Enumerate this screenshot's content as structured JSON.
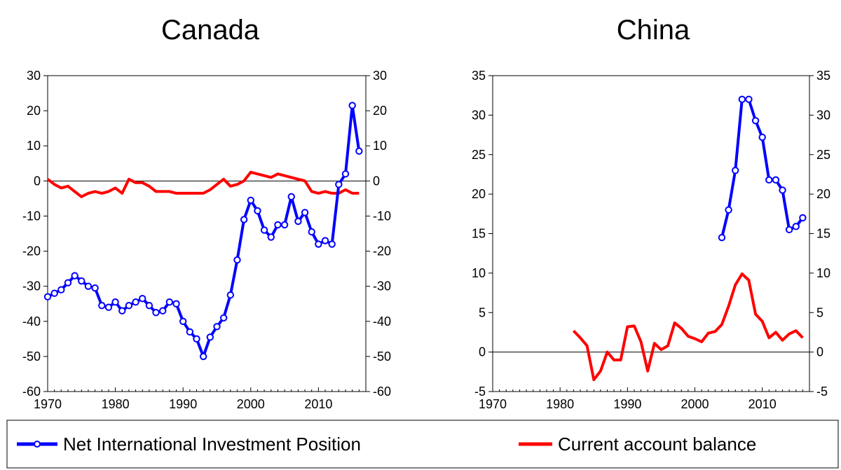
{
  "chart_data": [
    {
      "type": "line",
      "title": "Canada",
      "xlim": [
        1970,
        2017
      ],
      "ylim": [
        -60,
        30
      ],
      "xticks": [
        1970,
        1980,
        1990,
        2000,
        2010
      ],
      "yticks": [
        -60,
        -50,
        -40,
        -30,
        -20,
        -10,
        0,
        10,
        20,
        30
      ],
      "dual_y_axis": true,
      "zero_line": true,
      "series": [
        {
          "name": "Net International Investment Position",
          "color": "#0000ff",
          "marker": "circle",
          "x": [
            1970,
            1971,
            1972,
            1973,
            1974,
            1975,
            1976,
            1977,
            1978,
            1979,
            1980,
            1981,
            1982,
            1983,
            1984,
            1985,
            1986,
            1987,
            1988,
            1989,
            1990,
            1991,
            1992,
            1993,
            1994,
            1995,
            1996,
            1997,
            1998,
            1999,
            2000,
            2001,
            2002,
            2003,
            2004,
            2005,
            2006,
            2007,
            2008,
            2009,
            2010,
            2011,
            2012,
            2013,
            2014,
            2015,
            2016
          ],
          "y": [
            -33,
            -32,
            -31,
            -29,
            -27,
            -28.5,
            -30,
            -30.5,
            -35.5,
            -36,
            -34.5,
            -37,
            -35.5,
            -34.5,
            -33.5,
            -35.5,
            -37.5,
            -37,
            -34.5,
            -35,
            -40,
            -43,
            -45,
            -50,
            -44.5,
            -41.5,
            -39,
            -32.5,
            -22.5,
            -11,
            -5.5,
            -8.5,
            -14,
            -16,
            -12.5,
            -12.5,
            -4.5,
            -11.5,
            -9,
            -14.5,
            -18,
            -17,
            -18,
            -1,
            2,
            21.5,
            8.5
          ]
        },
        {
          "name": "Current account balance",
          "color": "#ff0000",
          "marker": "none",
          "x": [
            1970,
            1971,
            1972,
            1973,
            1974,
            1975,
            1976,
            1977,
            1978,
            1979,
            1980,
            1981,
            1982,
            1983,
            1984,
            1985,
            1986,
            1987,
            1988,
            1989,
            1990,
            1991,
            1992,
            1993,
            1994,
            1995,
            1996,
            1997,
            1998,
            1999,
            2000,
            2001,
            2002,
            2003,
            2004,
            2005,
            2006,
            2007,
            2008,
            2009,
            2010,
            2011,
            2012,
            2013,
            2014,
            2015,
            2016
          ],
          "y": [
            0.5,
            -1,
            -2,
            -1.5,
            -3,
            -4.5,
            -3.5,
            -3,
            -3.5,
            -3,
            -2,
            -3.5,
            0.5,
            -0.5,
            -0.5,
            -1.5,
            -3,
            -3,
            -3,
            -3.5,
            -3.5,
            -3.5,
            -3.5,
            -3.5,
            -2.5,
            -1,
            0.5,
            -1.5,
            -1,
            0,
            2.5,
            2,
            1.5,
            1,
            2,
            1.5,
            1,
            0.5,
            0,
            -3,
            -3.5,
            -3,
            -3.5,
            -3.5,
            -2.5,
            -3.5,
            -3.5
          ]
        }
      ]
    },
    {
      "type": "line",
      "title": "China",
      "xlim": [
        1970,
        2017
      ],
      "ylim": [
        -5,
        35
      ],
      "xticks": [
        1970,
        1980,
        1990,
        2000,
        2010
      ],
      "yticks": [
        -5,
        0,
        5,
        10,
        15,
        20,
        25,
        30,
        35
      ],
      "dual_y_axis": true,
      "zero_line": true,
      "series": [
        {
          "name": "Net International Investment Position",
          "color": "#0000ff",
          "marker": "circle",
          "x": [
            2004,
            2005,
            2006,
            2007,
            2008,
            2009,
            2010,
            2011,
            2012,
            2013,
            2014,
            2015,
            2016
          ],
          "y": [
            14.5,
            18,
            23,
            32,
            32,
            29.3,
            27.2,
            21.8,
            21.8,
            20.5,
            15.5,
            15.9,
            17
          ]
        },
        {
          "name": "Current account balance",
          "color": "#ff0000",
          "marker": "none",
          "x": [
            1982,
            1983,
            1984,
            1985,
            1986,
            1987,
            1988,
            1989,
            1990,
            1991,
            1992,
            1993,
            1994,
            1995,
            1996,
            1997,
            1998,
            1999,
            2000,
            2001,
            2002,
            2003,
            2004,
            2005,
            2006,
            2007,
            2008,
            2009,
            2010,
            2011,
            2012,
            2013,
            2014,
            2015,
            2016
          ],
          "y": [
            2.7,
            1.8,
            0.8,
            -3.5,
            -2.4,
            0,
            -1,
            -1,
            3.2,
            3.3,
            1.3,
            -2.4,
            1.1,
            0.3,
            0.8,
            3.7,
            3,
            2,
            1.7,
            1.3,
            2.4,
            2.6,
            3.5,
            5.8,
            8.5,
            9.9,
            9.1,
            4.8,
            3.9,
            1.8,
            2.5,
            1.5,
            2.3,
            2.7,
            1.8
          ]
        }
      ]
    }
  ],
  "legend": {
    "position": "bottom",
    "items": [
      {
        "label": "Net International Investment Position",
        "color": "#0000ff",
        "marker": "circle"
      },
      {
        "label": "Current account balance",
        "color": "#ff0000",
        "marker": "none"
      }
    ]
  }
}
